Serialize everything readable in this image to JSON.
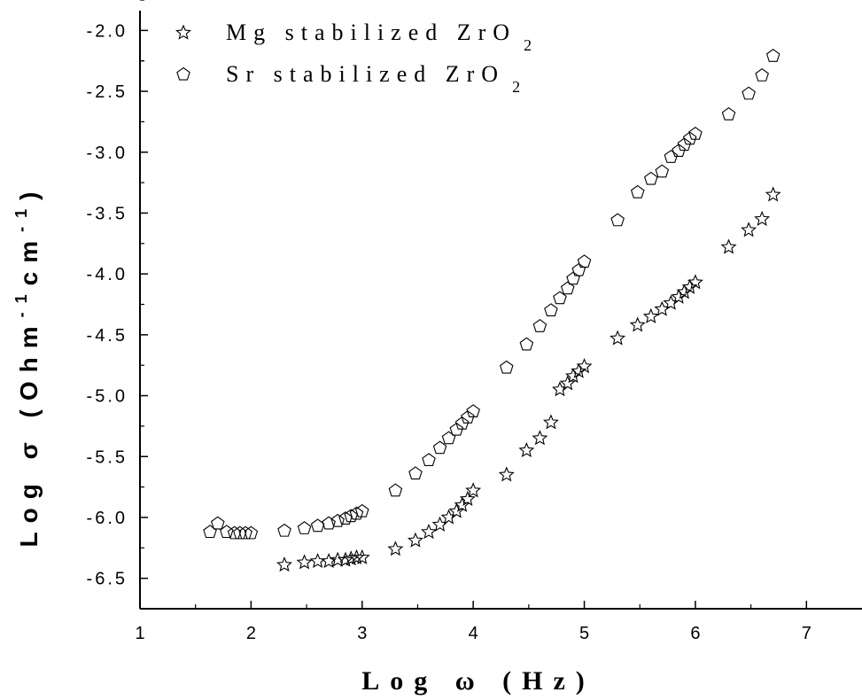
{
  "chart_data": {
    "type": "scatter",
    "xlabel": "Log ω (Hz)",
    "ylabel_parts": {
      "a": "Log σ (Ohm",
      "b": "-1",
      "c": "cm",
      "d": "-1",
      "e": ")"
    },
    "xlim": [
      1,
      7.5
    ],
    "ylim": [
      -6.75,
      -1.75
    ],
    "x_ticks": [
      "1",
      "2",
      "3",
      "4",
      "5",
      "6",
      "7"
    ],
    "y_ticks": [
      "-2.0",
      "-2.5",
      "-3.0",
      "-3.5",
      "-4.0",
      "-4.5",
      "-5.0",
      "-5.5",
      "-6.0",
      "-6.5"
    ],
    "legend": [
      {
        "marker": "star",
        "text": "Mg stabilized ZrO",
        "sub": "2"
      },
      {
        "marker": "pentagon",
        "text": "Sr stabilized ZrO",
        "sub": "2"
      }
    ],
    "series": [
      {
        "name": "Mg stabilized ZrO2",
        "marker": "star",
        "points": [
          [
            2.3,
            -6.39
          ],
          [
            2.48,
            -6.37
          ],
          [
            2.6,
            -6.36
          ],
          [
            2.7,
            -6.36
          ],
          [
            2.78,
            -6.35
          ],
          [
            2.85,
            -6.35
          ],
          [
            2.9,
            -6.34
          ],
          [
            2.95,
            -6.33
          ],
          [
            3.0,
            -6.33
          ],
          [
            3.3,
            -6.26
          ],
          [
            3.48,
            -6.19
          ],
          [
            3.6,
            -6.12
          ],
          [
            3.7,
            -6.06
          ],
          [
            3.78,
            -6.0
          ],
          [
            3.85,
            -5.95
          ],
          [
            3.9,
            -5.9
          ],
          [
            3.95,
            -5.85
          ],
          [
            4.0,
            -5.78
          ],
          [
            4.3,
            -5.65
          ],
          [
            4.48,
            -5.45
          ],
          [
            4.6,
            -5.35
          ],
          [
            4.7,
            -5.22
          ],
          [
            4.78,
            -4.95
          ],
          [
            4.85,
            -4.9
          ],
          [
            4.9,
            -4.84
          ],
          [
            4.95,
            -4.8
          ],
          [
            5.0,
            -4.76
          ],
          [
            5.3,
            -4.53
          ],
          [
            5.48,
            -4.42
          ],
          [
            5.6,
            -4.35
          ],
          [
            5.7,
            -4.29
          ],
          [
            5.78,
            -4.24
          ],
          [
            5.85,
            -4.19
          ],
          [
            5.9,
            -4.15
          ],
          [
            5.95,
            -4.11
          ],
          [
            6.0,
            -4.07
          ],
          [
            6.3,
            -3.78
          ],
          [
            6.48,
            -3.64
          ],
          [
            6.6,
            -3.55
          ],
          [
            6.7,
            -3.35
          ]
        ]
      },
      {
        "name": "Sr stabilized ZrO2",
        "marker": "pentagon",
        "points": [
          [
            1.63,
            -6.12
          ],
          [
            1.7,
            -6.05
          ],
          [
            1.78,
            -6.12
          ],
          [
            1.85,
            -6.13
          ],
          [
            1.9,
            -6.13
          ],
          [
            1.95,
            -6.13
          ],
          [
            2.0,
            -6.13
          ],
          [
            2.3,
            -6.11
          ],
          [
            2.48,
            -6.09
          ],
          [
            2.6,
            -6.07
          ],
          [
            2.7,
            -6.05
          ],
          [
            2.78,
            -6.03
          ],
          [
            2.85,
            -6.01
          ],
          [
            2.9,
            -5.99
          ],
          [
            2.95,
            -5.97
          ],
          [
            3.0,
            -5.95
          ],
          [
            3.3,
            -5.78
          ],
          [
            3.48,
            -5.64
          ],
          [
            3.6,
            -5.53
          ],
          [
            3.7,
            -5.43
          ],
          [
            3.78,
            -5.35
          ],
          [
            3.85,
            -5.28
          ],
          [
            3.9,
            -5.23
          ],
          [
            3.95,
            -5.18
          ],
          [
            4.0,
            -5.13
          ],
          [
            4.3,
            -4.77
          ],
          [
            4.48,
            -4.58
          ],
          [
            4.6,
            -4.43
          ],
          [
            4.7,
            -4.3
          ],
          [
            4.78,
            -4.2
          ],
          [
            4.85,
            -4.12
          ],
          [
            4.9,
            -4.04
          ],
          [
            4.95,
            -3.97
          ],
          [
            5.0,
            -3.9
          ],
          [
            5.3,
            -3.56
          ],
          [
            5.48,
            -3.33
          ],
          [
            5.6,
            -3.22
          ],
          [
            5.7,
            -3.16
          ],
          [
            5.78,
            -3.04
          ],
          [
            5.85,
            -2.99
          ],
          [
            5.9,
            -2.94
          ],
          [
            5.95,
            -2.89
          ],
          [
            6.0,
            -2.85
          ],
          [
            6.3,
            -2.69
          ],
          [
            6.48,
            -2.52
          ],
          [
            6.6,
            -2.37
          ],
          [
            6.7,
            -2.21
          ]
        ]
      }
    ]
  }
}
